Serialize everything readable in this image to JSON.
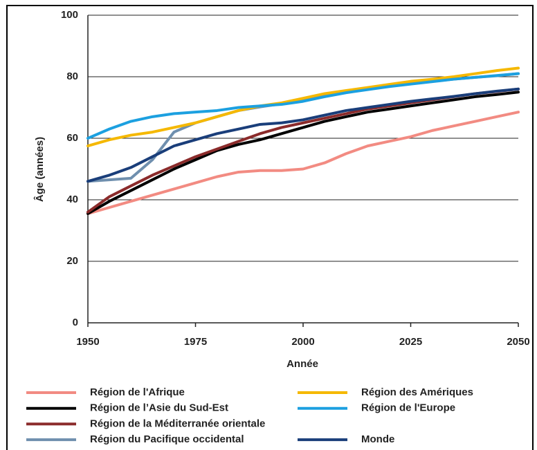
{
  "chart_data": {
    "type": "line",
    "xlabel": "Année",
    "ylabel": "Âge (années)",
    "x": [
      1950,
      1955,
      1960,
      1965,
      1970,
      1975,
      1980,
      1985,
      1990,
      1995,
      2000,
      2005,
      2010,
      2015,
      2020,
      2025,
      2030,
      2035,
      2040,
      2045,
      2050
    ],
    "xlim": [
      1950,
      2050
    ],
    "xticks": [
      1950,
      1975,
      2000,
      2025,
      2050
    ],
    "ylim": [
      0,
      100
    ],
    "yticks": [
      0,
      20,
      40,
      60,
      80,
      100
    ],
    "grid": true,
    "series": [
      {
        "name": "Région de l'Afrique",
        "color": "#f28b82",
        "values": [
          35.5,
          37.5,
          39.5,
          41.5,
          43.5,
          45.5,
          47.5,
          49,
          49.5,
          49.5,
          50,
          52,
          55,
          57.5,
          59,
          60.5,
          62.5,
          64,
          65.5,
          67,
          68.5
        ]
      },
      {
        "name": "Région de l’Asie du Sud-Est",
        "color": "#000000",
        "values": [
          35.5,
          39.5,
          43,
          46.5,
          50,
          53,
          56,
          58,
          59.5,
          61.5,
          63.5,
          65.5,
          67,
          68.5,
          69.5,
          70.5,
          71.5,
          72.5,
          73.5,
          74.2,
          75
        ]
      },
      {
        "name": "Région de la Méditerranée orientale",
        "color": "#8b2b2b",
        "values": [
          36,
          41,
          44.5,
          48,
          51,
          54,
          56.5,
          59,
          61.5,
          63.5,
          65,
          66.5,
          68,
          69.5,
          70.5,
          71.5,
          72.5,
          73.5,
          74.5,
          75.2,
          76
        ]
      },
      {
        "name": "Région du Pacifique occidental",
        "color": "#6f8fae",
        "values": [
          46,
          46.5,
          47,
          53,
          62,
          65,
          67,
          69,
          70.2,
          71.2,
          72.5,
          74,
          75,
          76,
          77,
          77.8,
          78.5,
          79.2,
          79.8,
          80.3,
          81
        ]
      },
      {
        "name": "Région des Amériques",
        "color": "#f5b800",
        "values": [
          57.5,
          59.5,
          61,
          62,
          63.5,
          65,
          67,
          69,
          70.5,
          71.5,
          73,
          74.5,
          75.5,
          76.5,
          77.5,
          78.5,
          79.2,
          80,
          81,
          82,
          82.8
        ]
      },
      {
        "name": "Région de l'Europe",
        "color": "#1ca0e0",
        "values": [
          60,
          63,
          65.5,
          67,
          68,
          68.5,
          69,
          70,
          70.5,
          71,
          72,
          73.5,
          74.8,
          75.8,
          76.8,
          77.6,
          78.4,
          79.2,
          79.8,
          80.4,
          81
        ]
      },
      {
        "name": "Monde",
        "color": "#1a3e7a",
        "values": [
          46,
          48,
          50.5,
          54,
          57.5,
          59.5,
          61.5,
          63,
          64.5,
          65,
          66,
          67.5,
          69,
          70,
          71,
          72,
          72.8,
          73.6,
          74.5,
          75.3,
          76
        ]
      }
    ]
  }
}
